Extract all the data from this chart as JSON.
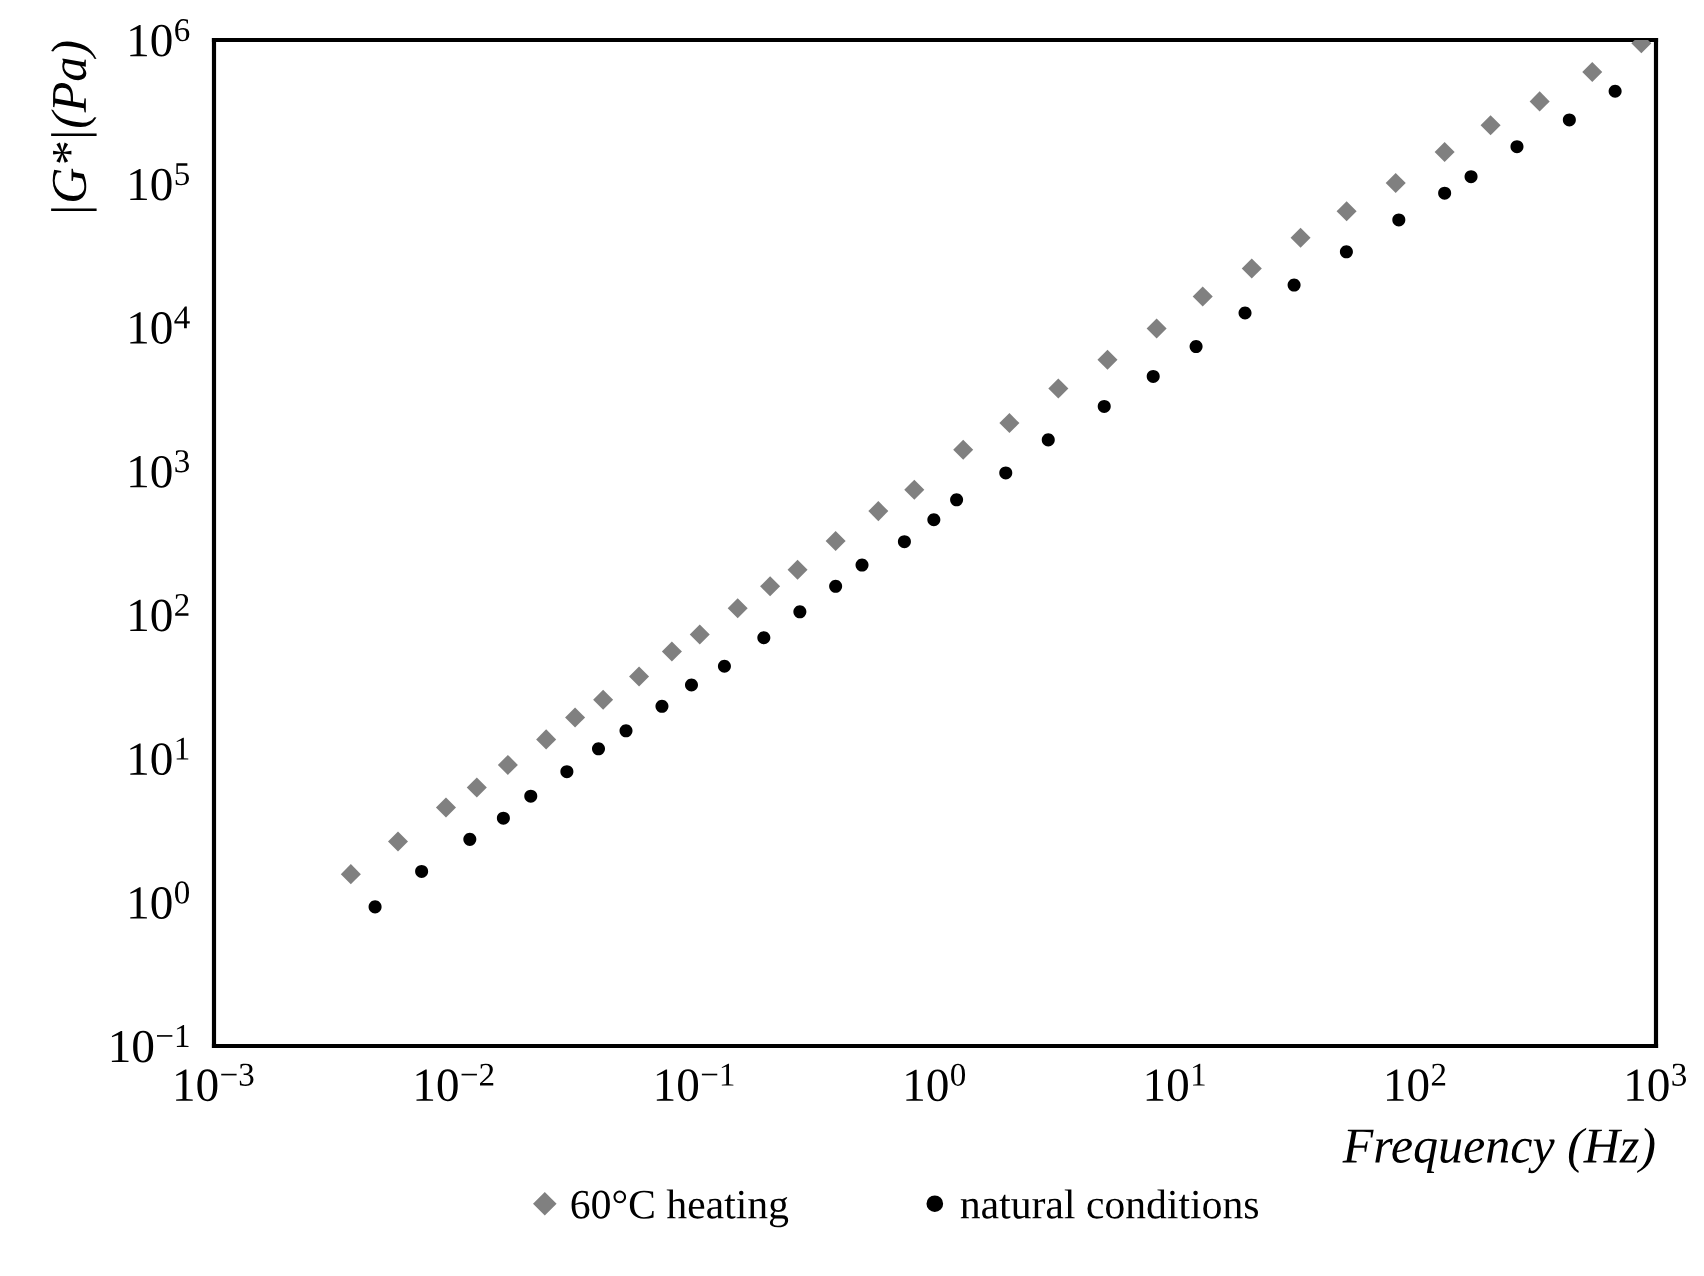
{
  "chart_data": {
    "type": "scatter",
    "xlabel": "Frequency (Hz)",
    "ylabel": "|G*|(Pa)",
    "log": "xy",
    "grid": false,
    "legend": "bottom",
    "xlim": [
      0.001,
      1000
    ],
    "ylim": [
      0.1,
      1000000
    ],
    "xticks": [
      {
        "value": 0.001,
        "label": "10$^{−3}$"
      },
      {
        "value": 0.01,
        "label": "10$^{−2}$"
      },
      {
        "value": 0.1,
        "label": "10$^{−1}$"
      },
      {
        "value": 1,
        "label": "10$^{0}$"
      },
      {
        "value": 10,
        "label": "10$^{1}$"
      },
      {
        "value": 100,
        "label": "10$^{2}$"
      },
      {
        "value": 1000,
        "label": "10$^{3}$"
      }
    ],
    "yticks": [
      {
        "value": 0.1,
        "label": "10$^{−1}$"
      },
      {
        "value": 1,
        "label": "10$^{0}$"
      },
      {
        "value": 10,
        "label": "10$^{1}$"
      },
      {
        "value": 100,
        "label": "10$^{2}$"
      },
      {
        "value": 1000,
        "label": "10$^{3}$"
      },
      {
        "value": 10000,
        "label": "10$^{4}$"
      },
      {
        "value": 100000,
        "label": "10$^{5}$"
      },
      {
        "value": 1000000,
        "label": "10$^{6}$"
      }
    ],
    "series": [
      {
        "name": "60°C heating",
        "color": "#808080",
        "marker": "diamond",
        "x": [
          0.00371,
          0.00583,
          0.00923,
          0.0124,
          0.0167,
          0.0241,
          0.0318,
          0.0416,
          0.0587,
          0.0804,
          0.105,
          0.151,
          0.206,
          0.268,
          0.386,
          0.581,
          0.82,
          1.31,
          2.04,
          3.26,
          5.22,
          8.36,
          13,
          20.8,
          33.2,
          51.6,
          82.6,
          132,
          205,
          328,
          543,
          869
        ],
        "values": [
          1.57,
          2.65,
          4.56,
          6.28,
          9.03,
          13.6,
          19.3,
          25.7,
          37.3,
          55.5,
          73.1,
          111,
          158,
          206,
          326,
          527,
          741,
          1410,
          2160,
          3760,
          5960,
          9820,
          16400,
          25700,
          42000,
          64300,
          101000,
          166000,
          255000,
          374000,
          598000,
          948000
        ]
      },
      {
        "name": "natural conditions",
        "color": "#000000",
        "marker": "circle",
        "x": [
          0.00468,
          0.00731,
          0.0116,
          0.016,
          0.0208,
          0.0294,
          0.0398,
          0.0518,
          0.0731,
          0.097,
          0.133,
          0.194,
          0.274,
          0.386,
          0.497,
          0.746,
          0.989,
          1.23,
          1.97,
          2.96,
          5.06,
          8.09,
          12.2,
          19.5,
          31.2,
          51.5,
          85.1,
          132,
          170,
          264,
          436,
          676
        ],
        "values": [
          0.929,
          1.64,
          2.74,
          3.85,
          5.47,
          8.11,
          11.7,
          15.6,
          23.1,
          32.5,
          43.9,
          69.3,
          105,
          158,
          222,
          323,
          459,
          632,
          971,
          1650,
          2820,
          4560,
          7360,
          12600,
          19700,
          33600,
          56000,
          85900,
          112000,
          181000,
          278000,
          440000
        ]
      }
    ]
  }
}
